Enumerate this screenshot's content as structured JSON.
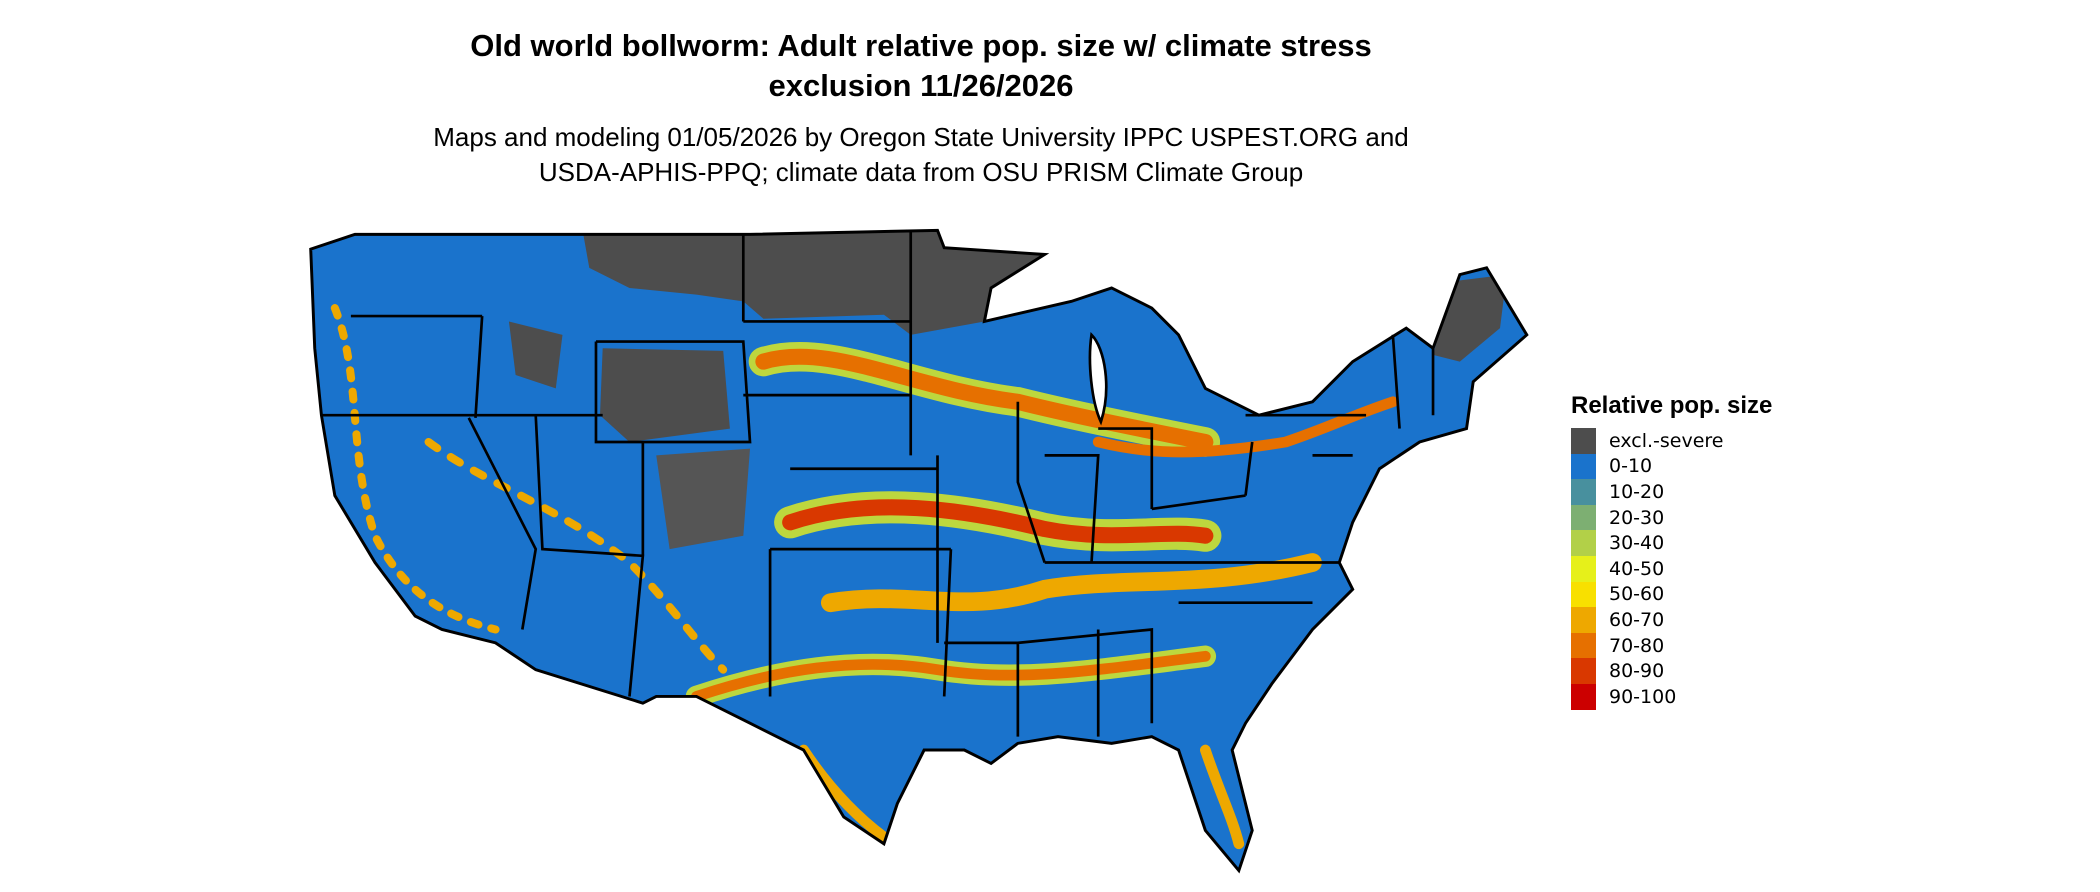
{
  "title": {
    "line1": "Old world bollworm: Adult relative pop. size w/ climate stress",
    "line2": "exclusion 11/26/2026"
  },
  "subtitle": {
    "line1": "Maps and modeling 01/05/2026 by Oregon State University IPPC USPEST.ORG and",
    "line2": "USDA-APHIS-PPQ; climate data from OSU PRISM Climate Group"
  },
  "map": {
    "region": "Contiguous United States",
    "state_borders": true,
    "dominant_class": "0-10"
  },
  "legend": {
    "title": "Relative pop. size",
    "placement": "right",
    "items": [
      {
        "label": "excl.-severe",
        "color": "#4d4d4d"
      },
      {
        "label": "0-10",
        "color": "#1a73cc"
      },
      {
        "label": "10-20",
        "color": "#48909e"
      },
      {
        "label": "20-30",
        "color": "#7daf72"
      },
      {
        "label": "30-40",
        "color": "#b2d048"
      },
      {
        "label": "40-50",
        "color": "#e6f01a"
      },
      {
        "label": "50-60",
        "color": "#f8e000"
      },
      {
        "label": "60-70",
        "color": "#eea800"
      },
      {
        "label": "70-80",
        "color": "#e67000"
      },
      {
        "label": "80-90",
        "color": "#d93800"
      },
      {
        "label": "90-100",
        "color": "#cc0000"
      }
    ]
  }
}
